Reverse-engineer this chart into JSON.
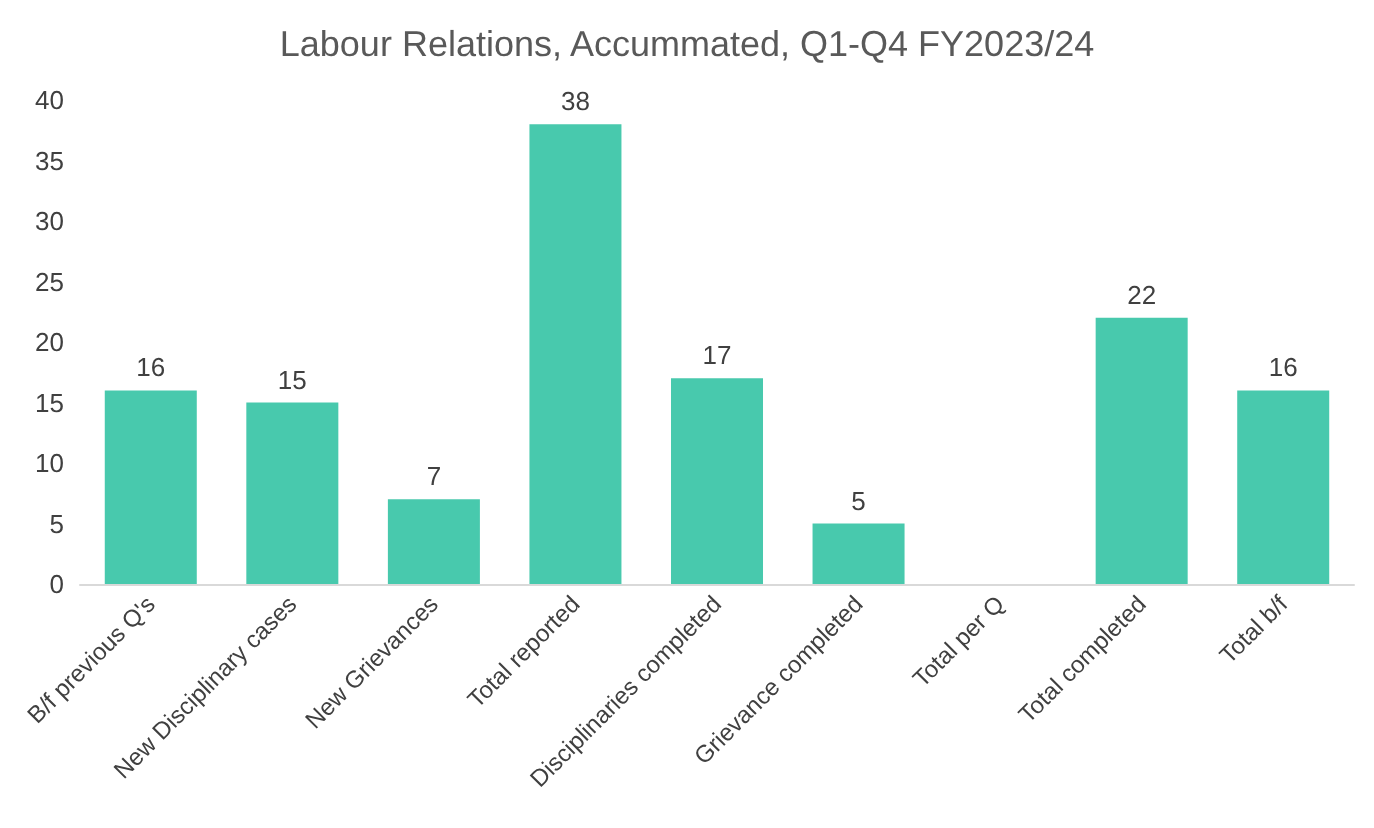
{
  "chart_data": {
    "type": "bar",
    "title": "Labour Relations, Accummated, Q1-Q4 FY2023/24",
    "categories": [
      "B/f previous Q's",
      "New Disciplinary cases",
      "New Grievances",
      "Total reported",
      "Disciplinaries completed",
      "Grievance completed",
      "Total per Q",
      "Total completed",
      "Total b/f"
    ],
    "values": [
      16,
      15,
      7,
      38,
      17,
      5,
      null,
      22,
      16
    ],
    "color": "#48c9ad",
    "ylim": [
      0,
      40
    ],
    "yticks": [
      0,
      5,
      10,
      15,
      20,
      25,
      30,
      35,
      40
    ],
    "grid": false,
    "data_labels": true
  }
}
